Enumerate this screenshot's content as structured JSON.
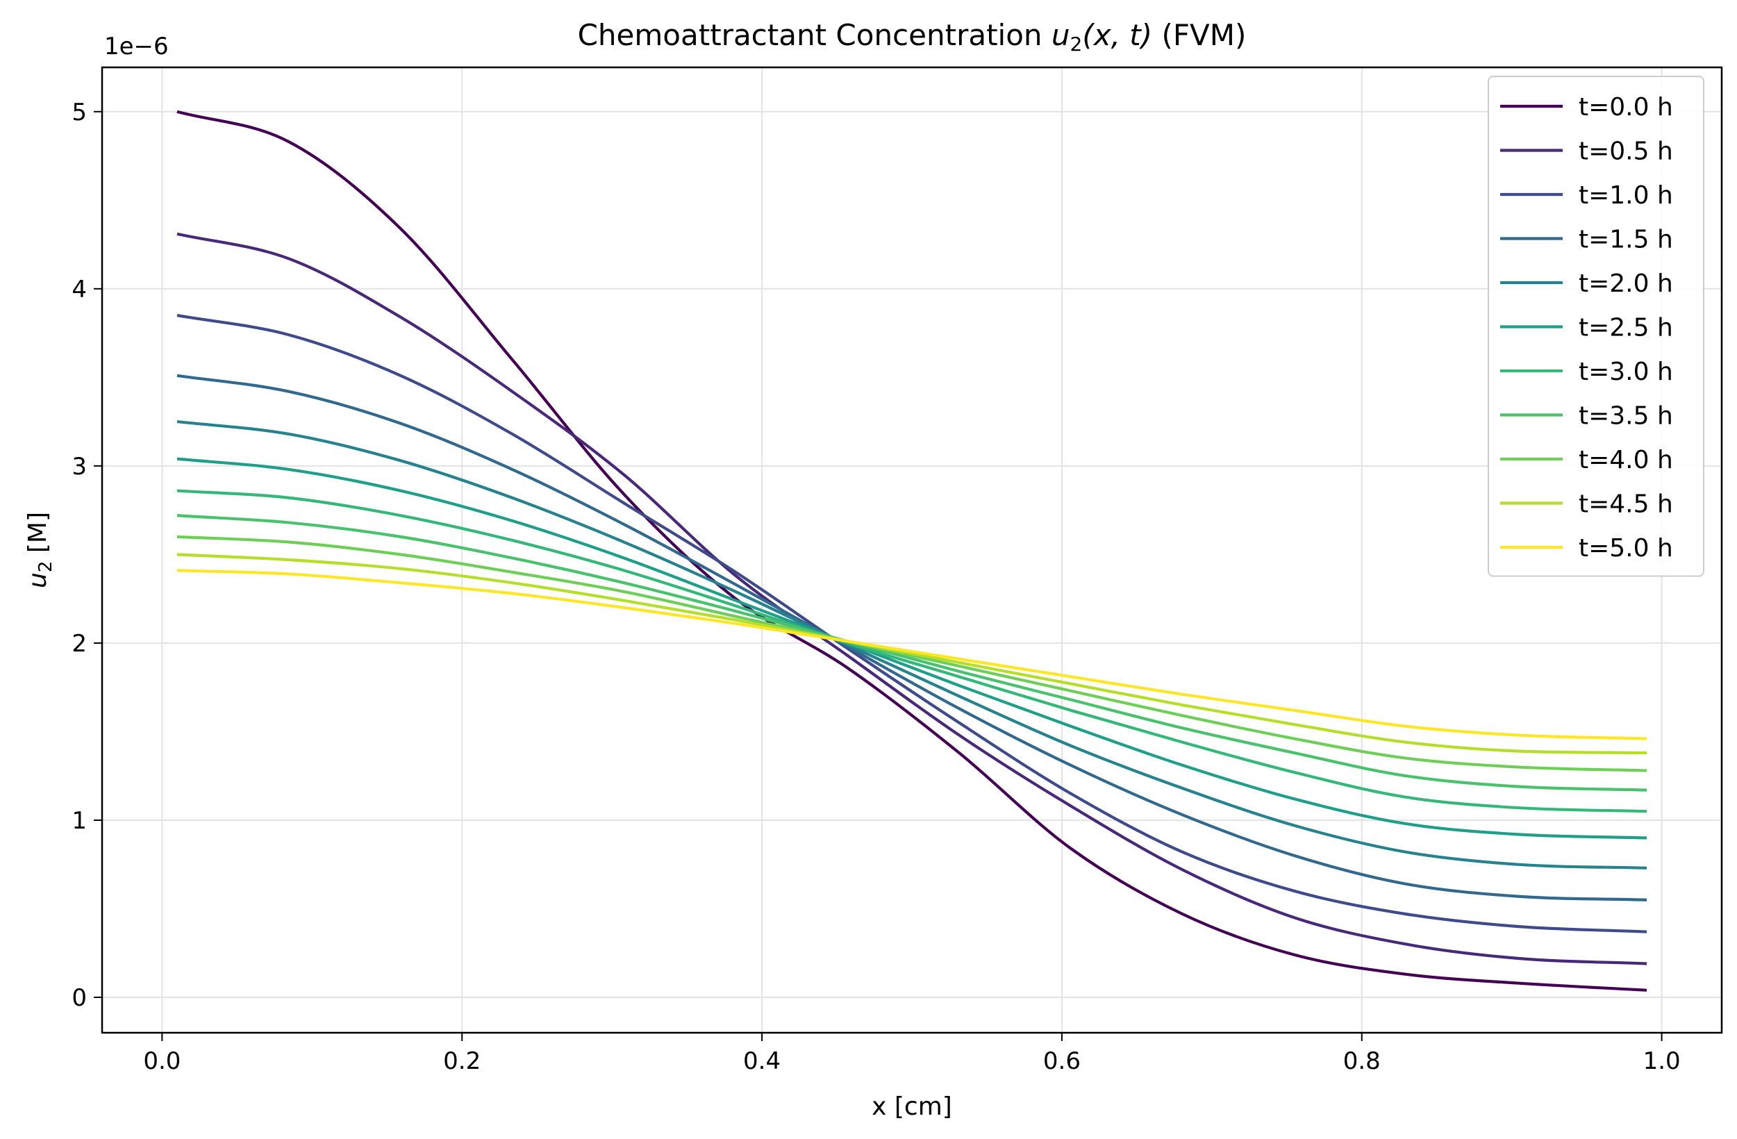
{
  "chart_data": {
    "type": "line",
    "title_prefix": "Chemoattractant Concentration ",
    "title_math": "u",
    "title_math_sub": "2",
    "title_math_args": "(x, t)",
    "title_suffix": " (FVM)",
    "xlabel": "x [cm]",
    "ylabel_math": "u",
    "ylabel_sub": "2",
    "ylabel_suffix": " [M]",
    "y_multiplier": "1e−6",
    "xlim": [
      -0.04,
      1.04
    ],
    "ylim": [
      -0.2,
      5.25
    ],
    "x_ticks": [
      0.0,
      0.2,
      0.4,
      0.6,
      0.8,
      1.0
    ],
    "x_tick_labels": [
      "0.0",
      "0.2",
      "0.4",
      "0.6",
      "0.8",
      "1.0"
    ],
    "y_ticks": [
      0,
      1,
      2,
      3,
      4,
      5
    ],
    "y_tick_labels": [
      "0",
      "1",
      "2",
      "3",
      "4",
      "5"
    ],
    "grid": true,
    "legend_position": "top-right",
    "x": [
      0.01,
      0.0845,
      0.159,
      0.2335,
      0.308,
      0.3825,
      0.457,
      0.5315,
      0.606,
      0.6805,
      0.755,
      0.8295,
      0.904,
      0.99
    ],
    "series": [
      {
        "name": "t=0.0 h",
        "color": "#440154",
        "values": [
          5.0,
          4.83,
          4.34,
          3.6,
          2.84,
          2.25,
          1.86,
          1.38,
          0.84,
          0.47,
          0.24,
          0.13,
          0.08,
          0.04
        ]
      },
      {
        "name": "t=0.5 h",
        "color": "#482878",
        "values": [
          4.31,
          4.17,
          3.84,
          3.42,
          2.95,
          2.38,
          1.93,
          1.48,
          1.08,
          0.72,
          0.45,
          0.3,
          0.22,
          0.19
        ]
      },
      {
        "name": "t=1.0 h",
        "color": "#3e4a89",
        "values": [
          3.85,
          3.74,
          3.51,
          3.18,
          2.79,
          2.4,
          1.97,
          1.55,
          1.15,
          0.82,
          0.6,
          0.47,
          0.4,
          0.37
        ]
      },
      {
        "name": "t=1.5 h",
        "color": "#31688e",
        "values": [
          3.51,
          3.42,
          3.24,
          2.98,
          2.67,
          2.33,
          1.98,
          1.63,
          1.31,
          1.03,
          0.8,
          0.64,
          0.57,
          0.55
        ]
      },
      {
        "name": "t=2.0 h",
        "color": "#26828e",
        "values": [
          3.25,
          3.18,
          3.03,
          2.82,
          2.57,
          2.29,
          1.99,
          1.7,
          1.42,
          1.18,
          0.97,
          0.82,
          0.75,
          0.73
        ]
      },
      {
        "name": "t=2.5 h",
        "color": "#1f9e89",
        "values": [
          3.04,
          2.98,
          2.86,
          2.69,
          2.48,
          2.24,
          2.0,
          1.76,
          1.53,
          1.31,
          1.12,
          0.98,
          0.92,
          0.9
        ]
      },
      {
        "name": "t=3.0 h",
        "color": "#35b779",
        "values": [
          2.86,
          2.82,
          2.72,
          2.58,
          2.41,
          2.21,
          2.0,
          1.81,
          1.62,
          1.44,
          1.27,
          1.13,
          1.07,
          1.05
        ]
      },
      {
        "name": "t=3.5 h",
        "color": "#4ac16d",
        "values": [
          2.72,
          2.68,
          2.6,
          2.48,
          2.34,
          2.18,
          2.01,
          1.84,
          1.68,
          1.52,
          1.38,
          1.25,
          1.19,
          1.17
        ]
      },
      {
        "name": "t=4.0 h",
        "color": "#6ece58",
        "values": [
          2.6,
          2.57,
          2.5,
          2.4,
          2.29,
          2.15,
          2.01,
          1.87,
          1.73,
          1.59,
          1.46,
          1.35,
          1.3,
          1.28
        ]
      },
      {
        "name": "t=4.5 h",
        "color": "#b5de2b",
        "values": [
          2.5,
          2.47,
          2.42,
          2.34,
          2.24,
          2.13,
          2.01,
          1.89,
          1.77,
          1.65,
          1.54,
          1.44,
          1.39,
          1.38
        ]
      },
      {
        "name": "t=5.0 h",
        "color": "#fde725",
        "values": [
          2.41,
          2.39,
          2.34,
          2.28,
          2.2,
          2.11,
          2.01,
          1.91,
          1.81,
          1.71,
          1.62,
          1.53,
          1.48,
          1.46
        ]
      }
    ]
  }
}
